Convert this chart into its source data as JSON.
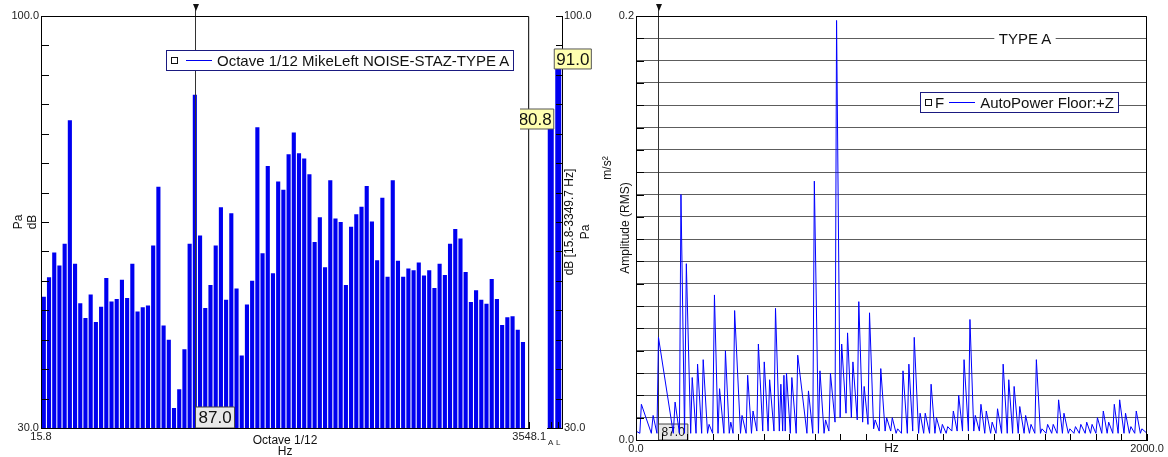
{
  "chart_data": [
    {
      "type": "bar",
      "log": "x",
      "legend": "top",
      "xlabel": "Hz",
      "ylabel": "dB",
      "annotations": [
        "Pa",
        "Octave 1/12"
      ],
      "xlim": [
        15.8,
        3548.1
      ],
      "xticks": [
        {
          "value": 15.8,
          "label": "15.8"
        },
        {
          "value": 3548.1,
          "label": "3548.1"
        }
      ],
      "ylim": [
        30,
        100
      ],
      "yticks": [
        {
          "value": 30,
          "label": "30.0"
        },
        {
          "value": 35,
          "label": null
        },
        {
          "value": 40,
          "label": null
        },
        {
          "value": 45,
          "label": null
        },
        {
          "value": 50,
          "label": null
        },
        {
          "value": 55,
          "label": null
        },
        {
          "value": 60,
          "label": null
        },
        {
          "value": 65,
          "label": null
        },
        {
          "value": 70,
          "label": null
        },
        {
          "value": 75,
          "label": null
        },
        {
          "value": 80,
          "label": null
        },
        {
          "value": 85,
          "label": null
        },
        {
          "value": 90,
          "label": null
        },
        {
          "value": 95,
          "label": null
        },
        {
          "value": 100,
          "label": "100.0"
        }
      ],
      "ref_lines": [
        {
          "axis": "x",
          "value": 87.0,
          "label": "87.0"
        }
      ],
      "x": [
        16.3,
        17.27,
        18.3,
        19.38,
        20.54,
        21.76,
        23.05,
        24.42,
        25.87,
        27.41,
        29.04,
        30.77,
        32.6,
        34.54,
        36.59,
        38.77,
        41.07,
        43.51,
        46.1,
        48.84,
        51.75,
        54.83,
        58.09,
        61.54,
        65.2,
        69.08,
        73.19,
        77.54,
        82.15,
        87.03,
        92.21,
        97.69,
        103.5,
        109.7,
        116.2,
        123.1,
        130.4,
        138.2,
        146.4,
        155.1,
        164.3,
        174.1,
        184.4,
        195.4,
        207.0,
        219.3,
        232.3,
        246.2,
        260.8,
        276.3,
        292.7,
        310.1,
        328.6,
        348.1,
        368.8,
        390.8,
        414.0,
        438.6,
        464.7,
        492.3,
        521.6,
        552.6,
        585.5,
        620.3,
        657.2,
        696.3,
        737.7,
        781.5,
        828.0,
        877.2,
        929.4,
        984.6,
        1043,
        1105,
        1171,
        1241,
        1314,
        1393,
        1475,
        1563,
        1656,
        1754,
        1859,
        1969,
        2086,
        2210,
        2342,
        2481,
        2629,
        2785,
        2951,
        3126,
        3312
      ],
      "series": [
        {
          "name": "Octave 1/12 MikeLeft NOISE-STAZ-TYPE A",
          "color": "#0000f0",
          "values": [
            52.3,
            55.6,
            59.8,
            57.6,
            61.3,
            82.3,
            57.9,
            51.2,
            48.7,
            52.7,
            48.0,
            50.6,
            55.5,
            51.5,
            51.9,
            55.2,
            52.1,
            57.9,
            49.8,
            50.5,
            50.8,
            61.0,
            71.0,
            47.4,
            45.0,
            33.4,
            36.6,
            43.4,
            61.3,
            86.6,
            62.7,
            50.4,
            54.3,
            61.0,
            67.5,
            51.8,
            66.5,
            53.7,
            42.3,
            51.0,
            55.0,
            81.1,
            59.7,
            74.5,
            56.3,
            71.9,
            70.5,
            76.5,
            80.2,
            76.7,
            75.8,
            73.1,
            61.6,
            65.8,
            57.3,
            72.1,
            65.6,
            65.0,
            54.3,
            64.2,
            66.3,
            67.6,
            71.1,
            65.1,
            58.5,
            69.1,
            55.7,
            72.1,
            58.4,
            55.7,
            57.1,
            56.8,
            58.1,
            55.9,
            56.8,
            53.8,
            57.9,
            56.0,
            61.3,
            63.8,
            62.2,
            56.5,
            51.4,
            53.4,
            51.8,
            51.1,
            55.3,
            51.9,
            47.5,
            48.8,
            49.0,
            46.7,
            44.6
          ]
        }
      ]
    },
    {
      "type": "bar",
      "categories": [
        "A",
        "L"
      ],
      "values": [
        80.8,
        91.0
      ],
      "value_labels": [
        "80.8",
        "91.0"
      ],
      "color": "#0000f0",
      "ylabel": "dB [15.8-3349.7 Hz]",
      "annotations": [
        "Pa"
      ],
      "ylim": [
        30,
        100
      ],
      "yticks": [
        {
          "value": 30,
          "label": "30.0"
        },
        {
          "value": 35,
          "label": null
        },
        {
          "value": 40,
          "label": null
        },
        {
          "value": 45,
          "label": null
        },
        {
          "value": 50,
          "label": null
        },
        {
          "value": 55,
          "label": null
        },
        {
          "value": 60,
          "label": null
        },
        {
          "value": 65,
          "label": null
        },
        {
          "value": 70,
          "label": null
        },
        {
          "value": 75,
          "label": null
        },
        {
          "value": 80,
          "label": null
        },
        {
          "value": 85,
          "label": null
        },
        {
          "value": 90,
          "label": null
        },
        {
          "value": 95,
          "label": null
        },
        {
          "value": 100,
          "label": "100.0"
        }
      ]
    },
    {
      "type": "line",
      "title": "TYPE A",
      "legend": "top",
      "legend_title": "F",
      "grid": "y",
      "marker": "none",
      "xlabel": "Hz",
      "ylabel": "Amplitude (RMS)",
      "annotations": [
        "m/s²"
      ],
      "xlim": [
        0,
        2000
      ],
      "xticks": [
        {
          "value": 0,
          "label": "0.0"
        },
        {
          "value": 100,
          "label": null
        },
        {
          "value": 200,
          "label": null
        },
        {
          "value": 300,
          "label": null
        },
        {
          "value": 400,
          "label": null
        },
        {
          "value": 500,
          "label": null
        },
        {
          "value": 600,
          "label": null
        },
        {
          "value": 700,
          "label": null
        },
        {
          "value": 800,
          "label": null
        },
        {
          "value": 900,
          "label": null
        },
        {
          "value": 1000,
          "label": null
        },
        {
          "value": 1100,
          "label": null
        },
        {
          "value": 1200,
          "label": null
        },
        {
          "value": 1300,
          "label": null
        },
        {
          "value": 1400,
          "label": null
        },
        {
          "value": 1500,
          "label": null
        },
        {
          "value": 1600,
          "label": null
        },
        {
          "value": 1700,
          "label": null
        },
        {
          "value": 1800,
          "label": null
        },
        {
          "value": 1900,
          "label": null
        },
        {
          "value": 2000,
          "label": "2000.0"
        }
      ],
      "ylim": [
        0,
        0.19
      ],
      "yticks": [
        {
          "value": 0,
          "label": "0.0"
        },
        {
          "value": 0.01,
          "label": null
        },
        {
          "value": 0.02,
          "label": null
        },
        {
          "value": 0.03,
          "label": null
        },
        {
          "value": 0.04,
          "label": null
        },
        {
          "value": 0.05,
          "label": null
        },
        {
          "value": 0.06,
          "label": null
        },
        {
          "value": 0.07,
          "label": null
        },
        {
          "value": 0.08,
          "label": null
        },
        {
          "value": 0.09,
          "label": null
        },
        {
          "value": 0.1,
          "label": null
        },
        {
          "value": 0.11,
          "label": null
        },
        {
          "value": 0.12,
          "label": null
        },
        {
          "value": 0.13,
          "label": null
        },
        {
          "value": 0.14,
          "label": null
        },
        {
          "value": 0.15,
          "label": null
        },
        {
          "value": 0.16,
          "label": null
        },
        {
          "value": 0.17,
          "label": null
        },
        {
          "value": 0.18,
          "label": null
        },
        {
          "value": 0.19,
          "label": "0.2"
        }
      ],
      "ref_lines": [
        {
          "axis": "x",
          "value": 87.0,
          "label": "87.0"
        }
      ],
      "series": [
        {
          "name": "AutoPower Floor:+Z",
          "color": "#0000ff",
          "x": [
            0,
            15,
            21,
            60,
            67,
            82,
            88,
            146,
            153,
            170,
            176,
            190,
            197,
            214,
            220,
            235,
            241,
            257,
            263,
            280,
            286,
            300,
            307,
            321,
            327,
            344,
            350,
            365,
            371,
            380,
            386,
            409,
            415,
            431,
            437,
            452,
            458,
            473,
            479,
            496,
            502,
            517,
            523,
            540,
            546,
            561,
            567,
            574,
            579,
            584,
            589,
            604,
            610,
            627,
            633,
            669,
            675,
            692,
            698,
            714,
            720,
            736,
            742,
            755,
            761,
            779,
            785,
            799,
            805,
            822,
            828,
            843,
            849,
            866,
            872,
            887,
            893,
            908,
            914,
            930,
            936,
            952,
            958,
            975,
            981,
            997,
            1003,
            1018,
            1024,
            1039,
            1045,
            1062,
            1068,
            1083,
            1089,
            1106,
            1112,
            1126,
            1132,
            1149,
            1155,
            1170,
            1176,
            1193,
            1199,
            1214,
            1220,
            1236,
            1242,
            1257,
            1263,
            1278,
            1284,
            1301,
            1307,
            1322,
            1328,
            1344,
            1350,
            1365,
            1371,
            1388,
            1394,
            1409,
            1415,
            1431,
            1437,
            1453,
            1459,
            1474,
            1480,
            1496,
            1502,
            1519,
            1525,
            1540,
            1546,
            1561,
            1567,
            1583,
            1589,
            1605,
            1611,
            1627,
            1633,
            1648,
            1654,
            1669,
            1675,
            1692,
            1698,
            1714,
            1720,
            1735,
            1741,
            1758,
            1764,
            1779,
            1785,
            1800,
            1806,
            1823,
            1829,
            1844,
            1850,
            1866,
            1872,
            1887,
            1893,
            1910,
            1916,
            1931,
            1937,
            1952,
            1958,
            1974,
            1980,
            2000
          ],
          "values": [
            0.004,
            0.003,
            0.016,
            0.003,
            0.011,
            0.003,
            0.046,
            0.003,
            0.017,
            0.003,
            0.11,
            0.003,
            0.079,
            0.003,
            0.028,
            0.003,
            0.034,
            0.003,
            0.036,
            0.003,
            0.007,
            0.003,
            0.065,
            0.003,
            0.023,
            0.003,
            0.04,
            0.003,
            0.008,
            0.003,
            0.058,
            0.003,
            0.011,
            0.003,
            0.029,
            0.003,
            0.013,
            0.004,
            0.043,
            0.004,
            0.035,
            0.004,
            0.027,
            0.004,
            0.059,
            0.004,
            0.025,
            0.004,
            0.029,
            0.004,
            0.03,
            0.003,
            0.028,
            0.003,
            0.038,
            0.003,
            0.022,
            0.003,
            0.116,
            0.003,
            0.031,
            0.003,
            0.009,
            0.004,
            0.03,
            0.008,
            0.188,
            0.01,
            0.043,
            0.012,
            0.048,
            0.01,
            0.035,
            0.009,
            0.062,
            0.008,
            0.024,
            0.007,
            0.057,
            0.005,
            0.009,
            0.004,
            0.032,
            0.004,
            0.01,
            0.004,
            0.01,
            0.003,
            0.005,
            0.003,
            0.031,
            0.003,
            0.034,
            0.004,
            0.046,
            0.003,
            0.012,
            0.003,
            0.012,
            0.003,
            0.025,
            0.003,
            0.01,
            0.003,
            0.007,
            0.003,
            0.006,
            0.004,
            0.013,
            0.004,
            0.02,
            0.004,
            0.036,
            0.004,
            0.054,
            0.004,
            0.011,
            0.004,
            0.016,
            0.003,
            0.013,
            0.003,
            0.008,
            0.003,
            0.014,
            0.003,
            0.034,
            0.003,
            0.027,
            0.003,
            0.024,
            0.003,
            0.015,
            0.003,
            0.011,
            0.003,
            0.007,
            0.003,
            0.036,
            0.003,
            0.005,
            0.003,
            0.007,
            0.003,
            0.007,
            0.003,
            0.018,
            0.003,
            0.012,
            0.003,
            0.005,
            0.003,
            0.006,
            0.003,
            0.007,
            0.003,
            0.008,
            0.003,
            0.007,
            0.003,
            0.01,
            0.003,
            0.013,
            0.003,
            0.008,
            0.003,
            0.016,
            0.003,
            0.018,
            0.003,
            0.012,
            0.003,
            0.006,
            0.003,
            0.013,
            0.003,
            0.005,
            0.003
          ]
        }
      ]
    }
  ]
}
